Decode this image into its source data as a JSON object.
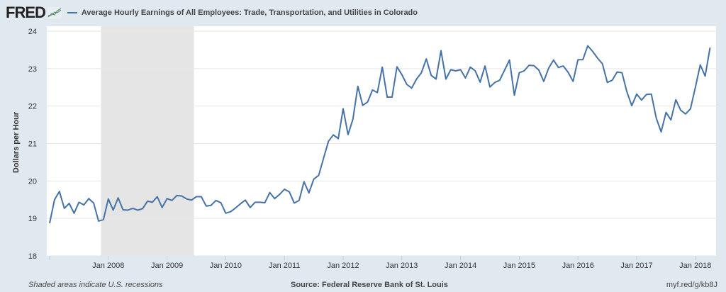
{
  "header": {
    "logo": "FRED",
    "title": "Average Hourly Earnings of All Employees: Trade, Transportation, and Utilities in Colorado"
  },
  "footer": {
    "note": "Shaded areas indicate U.S. recessions",
    "source": "Source: Federal Reserve Bank of St. Louis",
    "link": "myf.red/g/kb8J"
  },
  "colors": {
    "line": "#4572a7",
    "recession": "#e5e5e5",
    "background": "#e1e9f0"
  },
  "chart_data": {
    "type": "line",
    "title": "Average Hourly Earnings of All Employees: Trade, Transportation, and Utilities in Colorado",
    "xlabel": "",
    "ylabel": "Dollars per Hour",
    "ylim": [
      18,
      24
    ],
    "yticks": [
      "18",
      "19",
      "20",
      "21",
      "22",
      "23",
      "24"
    ],
    "xticks": [
      "Jan 2008",
      "Jan 2009",
      "Jan 2010",
      "Jan 2011",
      "Jan 2012",
      "Jan 2013",
      "Jan 2014",
      "Jan 2015",
      "Jan 2016",
      "Jan 2017",
      "Jan 2018"
    ],
    "x_start": "2007-01",
    "x_end": "2018-04",
    "frequency": "monthly",
    "grid": true,
    "recessions": [
      {
        "start": "2007-12",
        "end": "2009-06"
      }
    ],
    "series": [
      {
        "name": "Average Hourly Earnings of All Employees: Trade, Transportation, and Utilities in Colorado",
        "values": [
          18.87,
          19.5,
          19.72,
          19.27,
          19.4,
          19.14,
          19.43,
          19.36,
          19.53,
          19.41,
          18.93,
          18.97,
          19.52,
          19.22,
          19.55,
          19.23,
          19.22,
          19.27,
          19.22,
          19.26,
          19.46,
          19.43,
          19.58,
          19.29,
          19.53,
          19.48,
          19.61,
          19.6,
          19.52,
          19.49,
          19.58,
          19.58,
          19.33,
          19.35,
          19.48,
          19.42,
          19.14,
          19.18,
          19.28,
          19.39,
          19.49,
          19.29,
          19.43,
          19.43,
          19.42,
          19.69,
          19.53,
          19.64,
          19.78,
          19.71,
          19.41,
          19.48,
          19.98,
          19.68,
          20.05,
          20.15,
          20.61,
          21.06,
          21.23,
          21.13,
          21.93,
          21.24,
          21.65,
          22.53,
          22.02,
          22.11,
          22.43,
          22.36,
          23.04,
          22.24,
          22.24,
          23.05,
          22.84,
          22.58,
          22.48,
          22.72,
          22.89,
          23.26,
          22.82,
          22.72,
          23.48,
          22.72,
          22.97,
          22.94,
          22.97,
          22.75,
          23.04,
          22.94,
          22.64,
          23.07,
          22.51,
          22.63,
          22.69,
          22.96,
          23.23,
          22.29,
          22.89,
          22.94,
          23.09,
          23.08,
          22.96,
          22.66,
          23.01,
          23.23,
          23.03,
          23.07,
          22.9,
          22.66,
          23.24,
          23.24,
          23.61,
          23.46,
          23.28,
          23.13,
          22.63,
          22.69,
          22.91,
          22.89,
          22.38,
          22.01,
          22.32,
          22.16,
          22.31,
          22.32,
          21.68,
          21.31,
          21.83,
          21.63,
          22.17,
          21.89,
          21.79,
          21.93,
          22.5,
          23.1,
          22.8,
          23.56
        ]
      }
    ]
  }
}
